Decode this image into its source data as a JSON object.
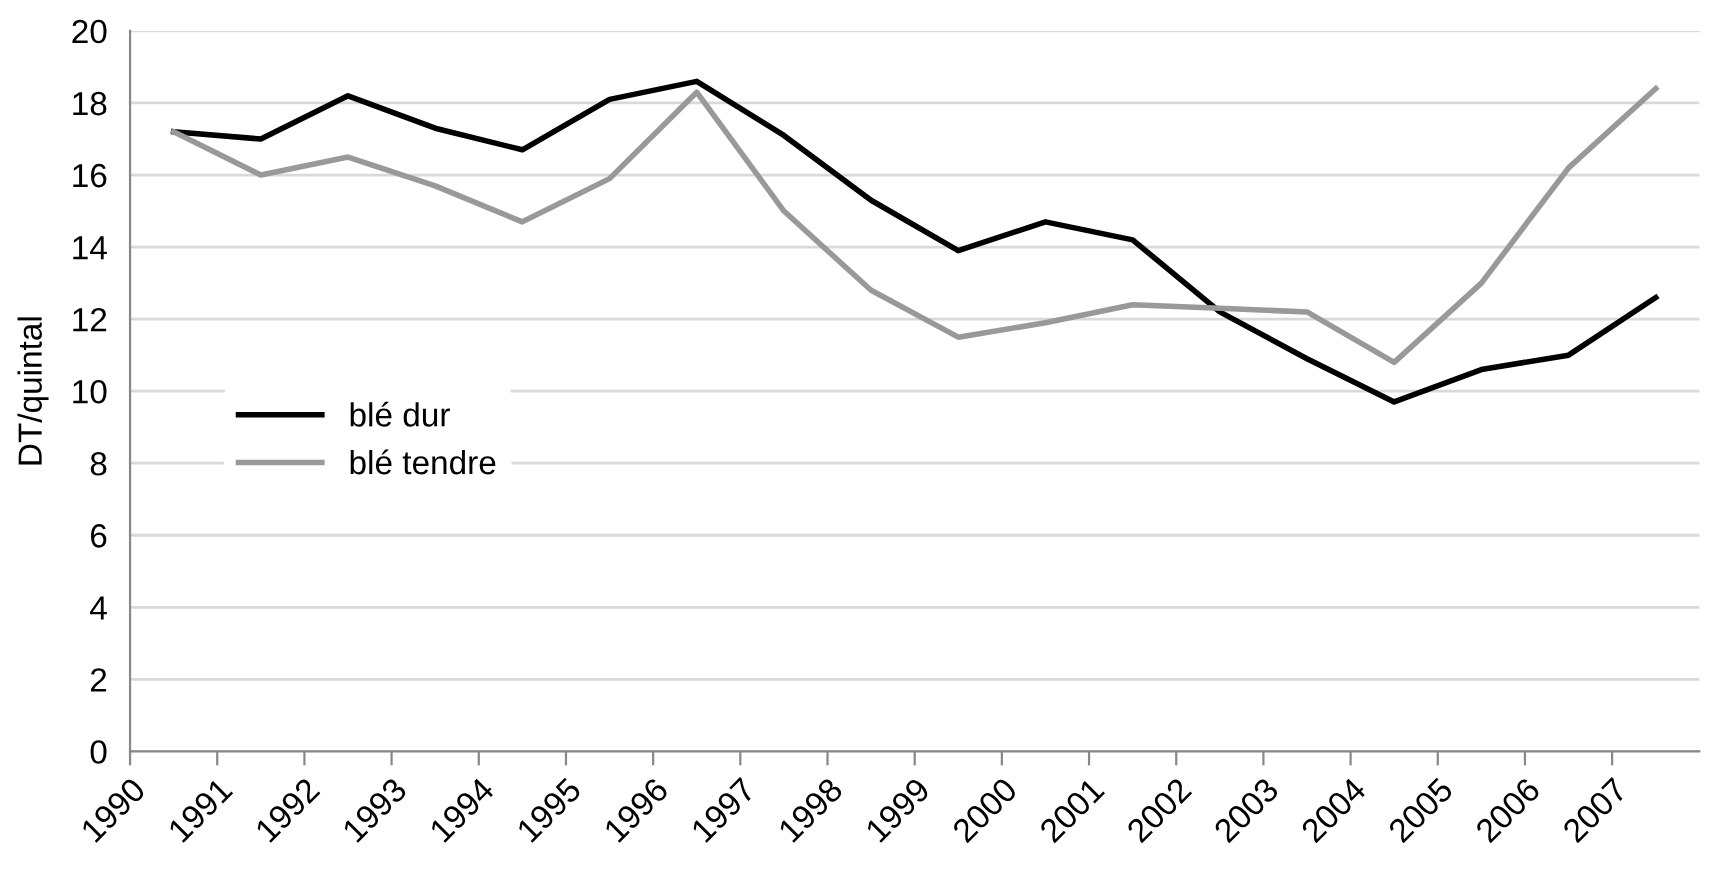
{
  "chart_data": {
    "type": "line",
    "ylabel": "DT/quintal",
    "x": [
      1990.5,
      1991.5,
      1992.5,
      1993.5,
      1994.5,
      1995.5,
      1996.5,
      1997.5,
      1998.5,
      1999.5,
      2000.5,
      2001.5,
      2002.5,
      2003.5,
      2004.5,
      2005.5,
      2006.5,
      2007.5
    ],
    "series": [
      {
        "name": "blé dur",
        "color": "#000000",
        "values": [
          17.2,
          17.0,
          18.2,
          17.3,
          16.7,
          18.1,
          18.6,
          17.1,
          15.3,
          13.9,
          14.7,
          14.2,
          12.2,
          10.9,
          9.7,
          10.6,
          11.0,
          12.6
        ]
      },
      {
        "name": "blé tendre",
        "color": "#999999",
        "values": [
          17.2,
          16.0,
          16.5,
          15.7,
          14.7,
          15.9,
          18.3,
          15.0,
          12.8,
          11.5,
          11.9,
          12.4,
          12.3,
          12.2,
          10.8,
          13.0,
          16.2,
          18.4
        ]
      }
    ],
    "xlim": [
      1990,
      2008
    ],
    "xticks": [
      1990,
      1991,
      1992,
      1993,
      1994,
      1995,
      1996,
      1997,
      1998,
      1999,
      2000,
      2001,
      2002,
      2003,
      2004,
      2005,
      2006,
      2007
    ],
    "ylim": [
      0,
      20
    ],
    "yticks": [
      0,
      2,
      4,
      6,
      8,
      10,
      12,
      14,
      16,
      18,
      20
    ],
    "grid": "y",
    "legend": "center left",
    "marker": "none",
    "line_style": "solid"
  }
}
